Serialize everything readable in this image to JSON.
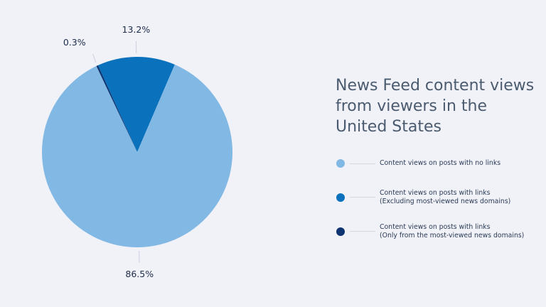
{
  "chart_data": {
    "type": "pie",
    "title": "News Feed content views from viewers in the United States",
    "slices": [
      {
        "label": "Content views on posts with no links",
        "value": 86.5,
        "display": "86.5%",
        "color": "#82b8e4"
      },
      {
        "label": "Content views on posts with links\n(Excluding most-viewed news domains)",
        "value": 13.2,
        "display": "13.2%",
        "color": "#0a72bd"
      },
      {
        "label": "Content views on posts with links\n(Only from the most-viewed news domains)",
        "value": 0.3,
        "display": "0.3%",
        "color": "#0d3470"
      }
    ],
    "legend_position": "right"
  }
}
